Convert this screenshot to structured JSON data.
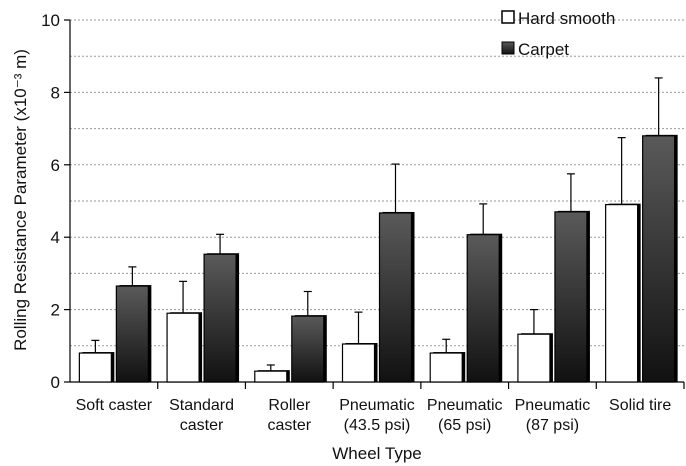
{
  "chart_data": {
    "type": "bar",
    "xlabel": "Wheel Type",
    "ylabel": "Rolling Resistance Parameter (x10⁻³ m)",
    "ylim": [
      0,
      10
    ],
    "yticks": [
      0,
      2,
      4,
      6,
      8,
      10
    ],
    "minor_gridlines": [
      1,
      3,
      5,
      7,
      9
    ],
    "grid": "horizontal dashed",
    "legend_position": "top-right",
    "categories": [
      [
        "Soft caster"
      ],
      [
        "Standard",
        "caster"
      ],
      [
        "Roller",
        "caster"
      ],
      [
        "Pneumatic",
        "(43.5 psi)"
      ],
      [
        "Pneumatic",
        "(65 psi)"
      ],
      [
        "Pneumatic",
        "(87 psi)"
      ],
      [
        "Solid tire"
      ]
    ],
    "series": [
      {
        "name": "Hard smooth",
        "color": "#ffffff",
        "values": [
          0.8,
          1.9,
          0.3,
          1.05,
          0.8,
          1.32,
          4.9
        ],
        "errors": [
          0.35,
          0.88,
          0.17,
          0.88,
          0.38,
          0.68,
          1.85
        ]
      },
      {
        "name": "Carpet",
        "color": "#3a3a3a",
        "values": [
          2.65,
          3.53,
          1.82,
          4.67,
          4.07,
          4.7,
          6.8
        ],
        "errors": [
          0.53,
          0.55,
          0.68,
          1.35,
          0.85,
          1.05,
          1.6
        ]
      }
    ]
  }
}
